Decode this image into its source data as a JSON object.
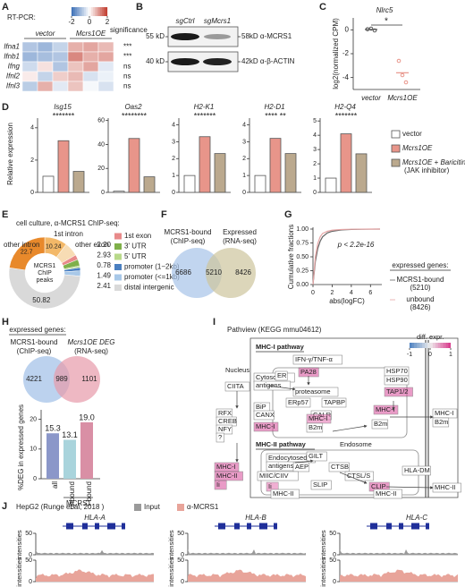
{
  "A": {
    "letter": "A",
    "title": "RT-PCR:",
    "groups": [
      "vector",
      "Mcrs1OE"
    ],
    "genes": [
      "Ifna1",
      "Ifnb1",
      "Ifng",
      "Ifnl2",
      "Ifnl3"
    ],
    "matrix": [
      [
        -0.8,
        -1.0,
        -0.6,
        0.8,
        0.9,
        0.7
      ],
      [
        -1.0,
        -0.9,
        -0.8,
        1.2,
        0.8,
        0.9
      ],
      [
        -0.5,
        0.3,
        -0.8,
        0.6,
        0.9,
        -0.3
      ],
      [
        0.2,
        -0.6,
        0.5,
        0.7,
        -0.4,
        -0.2
      ],
      [
        -0.7,
        0.8,
        -0.3,
        0.6,
        -0.1,
        -0.4
      ]
    ],
    "colorbar_lim": [
      -2,
      2
    ],
    "colorbar_ticks": [
      -2,
      0,
      2
    ],
    "significance_title": "significance",
    "significance": [
      "***",
      "***",
      "ns",
      "ns",
      "ns"
    ]
  },
  "B": {
    "letter": "B",
    "lanes": [
      "sgCtrl",
      "sgMcrs1"
    ],
    "markers": [
      "55 kD",
      "40 kD"
    ],
    "bands": [
      "58kD α-MCRS1",
      "42kD α-β-ACTIN"
    ]
  },
  "C": {
    "letter": "C",
    "title": "Nlrc5",
    "ylabel": "log2(normalized CPM)",
    "categories": [
      "vector",
      "Mcrs1OE"
    ],
    "means": [
      0.03,
      -3.6
    ],
    "points": [
      [
        0.05,
        0.1,
        -0.05
      ],
      [
        -2.6,
        -3.8,
        -4.4
      ]
    ],
    "ylim": [
      -5,
      1
    ],
    "yticks": [
      0,
      -2,
      -4
    ],
    "significance": "*"
  },
  "D": {
    "letter": "D",
    "ylabel": "Relative expression",
    "series": [
      "vector",
      "Mcrs1OE",
      "Mcrs1OE + Baricitinib"
    ],
    "legend_note": "(JAK inhibitor)",
    "colors": [
      "#ffffff",
      "#e8958a",
      "#bba98e"
    ],
    "plots": [
      {
        "gene": "Isg15",
        "ylim": [
          0,
          4.6
        ],
        "yticks": [
          0,
          2,
          4
        ],
        "values": [
          1,
          3.2,
          1.3
        ],
        "stars": "*******"
      },
      {
        "gene": "Oas2",
        "ylim": [
          0,
          62
        ],
        "yticks": [
          0,
          20,
          40,
          60
        ],
        "values": [
          1,
          45,
          13
        ],
        "stars": "********"
      },
      {
        "gene": "H2-K1",
        "ylim": [
          0,
          4.4
        ],
        "yticks": [
          0,
          1,
          2,
          3,
          4
        ],
        "values": [
          1,
          3.3,
          2.3
        ],
        "stars": "*******"
      },
      {
        "gene": "H2-D1",
        "ylim": [
          0,
          4.4
        ],
        "yticks": [
          0,
          1,
          2,
          3,
          4
        ],
        "values": [
          1,
          3.2,
          2.3
        ],
        "stars": "**** **"
      },
      {
        "gene": "H2-Q4",
        "ylim": [
          0,
          5.2
        ],
        "yticks": [
          0,
          1,
          2,
          3,
          4,
          5
        ],
        "values": [
          1,
          4.1,
          2.7
        ],
        "stars": "*******"
      }
    ]
  },
  "E": {
    "letter": "E",
    "title": "cell culture, α-MCRS1 ChIP-seq:",
    "center": [
      "MCRS1",
      "ChIP",
      "peaks"
    ],
    "callouts": [
      {
        "name": "other intron",
        "value": 22.7,
        "color": "#e8892b"
      },
      {
        "name": "1st intron",
        "value": 10.24,
        "color": "#f3b868"
      },
      {
        "name": "other exon",
        "value": 6.43,
        "color": "#f7dcb4"
      }
    ],
    "callout_value_labels": [
      "22.7",
      "10.24",
      null
    ],
    "legend": [
      {
        "name": "1st exon",
        "value": 2.2,
        "color": "#e88a8a"
      },
      {
        "name": "3' UTR",
        "value": 2.93,
        "color": "#7fb04a"
      },
      {
        "name": "5' UTR",
        "value": 0.78,
        "color": "#b8d98a"
      },
      {
        "name": "promoter (1−2kb)",
        "value": 1.49,
        "color": "#4a7fc0"
      },
      {
        "name": "promoter (<=1kb)",
        "value": 2.41,
        "color": "#a8c8e8"
      },
      {
        "name": "distal intergenic",
        "value": 50.82,
        "color": "#d9d9d9"
      }
    ],
    "legend_value_labels": [
      "2.20",
      "2.93",
      "0.78",
      "1.49",
      "2.41",
      "50.82"
    ]
  },
  "F": {
    "letter": "F",
    "left": "MCRS1-bound",
    "left_sub": "(ChIP-seq)",
    "right": "Expressed",
    "right_sub": "(RNA-seq)",
    "counts": [
      6686,
      5210,
      8426
    ]
  },
  "G": {
    "letter": "G",
    "ylabel": "Cumulative fractions",
    "xlabel": "abs(logFC)",
    "xlim": [
      0,
      7
    ],
    "xticks": [
      0,
      2,
      4,
      6
    ],
    "ylim": [
      0,
      1
    ],
    "yticks": [
      {
        "value": 0,
        "label": "0.00"
      },
      {
        "value": 0.25,
        "label": "0.25"
      },
      {
        "value": 0.5,
        "label": "0.50"
      },
      {
        "value": 0.75,
        "label": "0.75"
      },
      {
        "value": 1,
        "label": "1.00"
      }
    ],
    "annotation": "p < 2.2e-16",
    "legend_title": "expressed genes:",
    "series": [
      {
        "name": "MCRS1-bound",
        "count": "(5210)",
        "color": "#666666",
        "x": [
          0,
          0.25,
          0.5,
          0.75,
          1,
          1.5,
          2,
          3,
          4,
          5,
          6,
          7
        ],
        "values": [
          0,
          0.42,
          0.65,
          0.78,
          0.86,
          0.93,
          0.96,
          0.985,
          0.993,
          0.997,
          0.999,
          1
        ]
      },
      {
        "name": "unbound",
        "count": "(8426)",
        "color": "#e6a5a5",
        "x": [
          0,
          0.25,
          0.5,
          0.75,
          1,
          1.5,
          2,
          3,
          4,
          5,
          6,
          7
        ],
        "values": [
          0,
          0.5,
          0.74,
          0.86,
          0.92,
          0.96,
          0.98,
          0.993,
          0.997,
          0.999,
          1,
          1
        ]
      }
    ]
  },
  "H": {
    "letter": "H",
    "title": "expressed genes:",
    "left": "MCRS1-bound",
    "left_sub": "(ChIP-seq)",
    "right": "Mcrs1OE DEG",
    "right_sub": "(RNA-seq)",
    "counts": [
      4221,
      989,
      1101
    ],
    "ylabel": "%DEG in expressed genes",
    "categories": [
      "all",
      "unbound",
      "bound"
    ],
    "group_label": "MCRS1",
    "values": [
      15.3,
      13.1,
      19
    ],
    "value_labels": [
      "15.3",
      "13.1",
      "19.0"
    ],
    "colors": [
      "#8b97c9",
      "#a9d4dc",
      "#d98fa5"
    ],
    "ylim": [
      0,
      22
    ],
    "yticks": [
      0,
      10,
      20
    ]
  },
  "I": {
    "letter": "I",
    "title": "Pathview (KEGG mmu04612)",
    "cbar_ticks": [
      -1,
      0,
      1
    ],
    "cbar_lim": [
      -1,
      1
    ],
    "texts": [
      "MHC-I pathway",
      "diff. expr.",
      "IFN-γ/TNF-α",
      "PA28",
      "HSP70",
      "HSP90",
      "Cytosolic",
      "antigens",
      "proteasome",
      "ER",
      "TAP1/2",
      "BiP",
      "ERp57",
      "TAPBP",
      "CANX",
      "CALR",
      "MHC-I",
      "MHC-I",
      "B2m",
      "MHC-I",
      "B2m",
      "MHC-I",
      "B2m",
      "MHC-II pathway",
      "Endosome",
      "Endocytosed",
      "antigens",
      "GILT",
      "AEP",
      "CTSB",
      "MIIC/CIIV",
      "CTSL/S",
      "HLA-DM",
      "Ii",
      "SLIP",
      "CLIP",
      "MHC-II",
      "MHC-II",
      "MHC-II",
      "Nucleus",
      "CIITA",
      "RFX",
      "CREB",
      "NFY",
      "?",
      "MHC-I",
      "MHC-II",
      "Ii"
    ]
  },
  "J": {
    "letter": "J",
    "title": "HepG2 (Runge et al, 2018 )",
    "legend": [
      "Input",
      "α-MCRS1"
    ],
    "colors": [
      "#9a9a9a",
      "#e8a49a"
    ],
    "genes": [
      "HLA-A",
      "HLA-B",
      "HLA-C"
    ],
    "ylabel": "intensities",
    "ylim": [
      0,
      50
    ],
    "yticks": [
      0,
      50
    ]
  }
}
